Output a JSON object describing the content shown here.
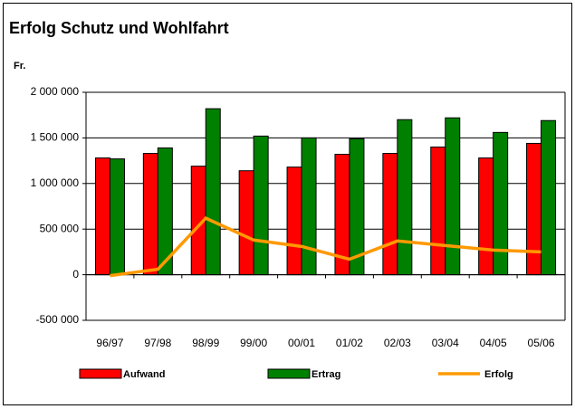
{
  "chart_data": {
    "type": "bar",
    "title": "Erfolg Schutz und Wohlfahrt",
    "y_label": "Fr.",
    "categories": [
      "96/97",
      "97/98",
      "98/99",
      "99/00",
      "00/01",
      "01/02",
      "02/03",
      "03/04",
      "04/05",
      "05/06"
    ],
    "series": [
      {
        "name": "Aufwand",
        "color": "#ff0000",
        "values": [
          1280000,
          1330000,
          1190000,
          1140000,
          1180000,
          1320000,
          1330000,
          1400000,
          1280000,
          1440000
        ]
      },
      {
        "name": "Ertrag",
        "color": "#008000",
        "values": [
          1270000,
          1390000,
          1820000,
          1520000,
          1500000,
          1490000,
          1700000,
          1720000,
          1560000,
          1690000
        ]
      },
      {
        "name": "Erfolg",
        "type": "line",
        "color": "#ff9900",
        "values": [
          -10000,
          60000,
          620000,
          380000,
          310000,
          170000,
          370000,
          320000,
          270000,
          250000
        ]
      }
    ],
    "ylim": [
      -500000,
      2000000
    ],
    "yticks": [
      {
        "value": -500000,
        "label": "-500 000"
      },
      0,
      {
        "value": 500000,
        "label": "500 000"
      },
      {
        "value": 1000000,
        "label": "1 000 000"
      },
      {
        "value": 1500000,
        "label": "1 500 000"
      },
      {
        "value": 2000000,
        "label": "2 000 000"
      }
    ],
    "grid": true,
    "legend": "bottom"
  }
}
